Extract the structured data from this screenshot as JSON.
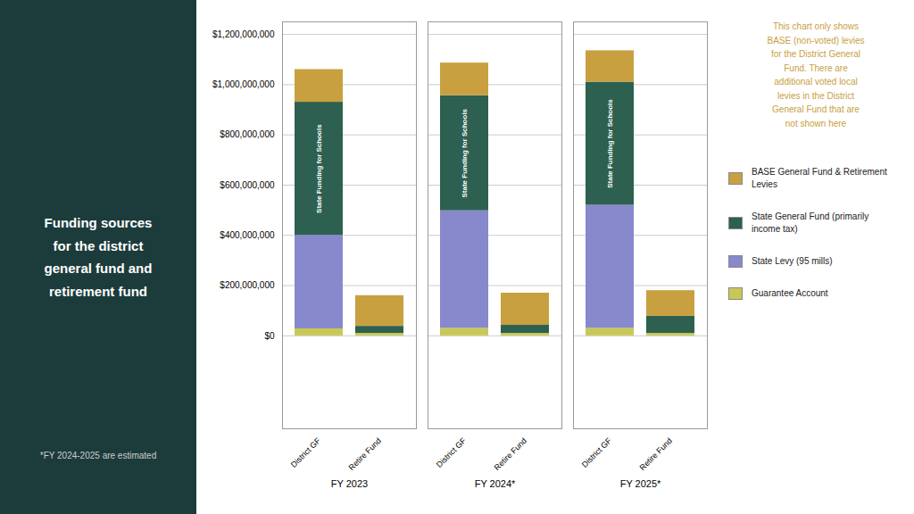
{
  "chart_data": {
    "type": "bar",
    "stacked": true,
    "title": "Funding sources\nfor the district\ngeneral fund and\nretirement fund",
    "footnote": "*FY 2024-2025 are estimated",
    "annotation": {
      "text": "This chart only shows\nBASE (non-voted) levies\nfor the District General\nFund. There are\nadditional voted local\nlevies in the District\nGeneral Fund that are\nnot shown here",
      "color": "#c8a040"
    },
    "groups": [
      "FY 2023",
      "FY 2024*",
      "FY 2025*"
    ],
    "categories": [
      "District GF",
      "Retire Fund"
    ],
    "series": [
      {
        "name": "Guarantee Account",
        "color": "#c8c855",
        "values": [
          [
            28000000,
            10000000
          ],
          [
            30000000,
            10000000
          ],
          [
            30000000,
            10000000
          ]
        ]
      },
      {
        "name": "State Levy (95 mills)",
        "color": "#8888cc",
        "values": [
          [
            372000000,
            null
          ],
          [
            468000000,
            null
          ],
          [
            490000000,
            null
          ]
        ]
      },
      {
        "name": "State General Fund (primarily\nincome tax)",
        "color": "#2d6050",
        "values": [
          [
            530000000,
            28000000
          ],
          [
            458000000,
            32000000
          ],
          [
            490000000,
            68000000
          ]
        ],
        "segment_label": {
          "text": "State Funding for Schools",
          "category": "District GF",
          "color": "#ffffff"
        }
      },
      {
        "name": "BASE General Fund & Retirement\nLevies",
        "color": "#c8a040",
        "values": [
          [
            130000000,
            122000000
          ],
          [
            130000000,
            128000000
          ],
          [
            125000000,
            102000000
          ]
        ]
      }
    ],
    "ylim": [
      -370000000,
      1250000000
    ],
    "yticks": [
      {
        "value": 0,
        "label": "$0"
      },
      {
        "value": 200000000,
        "label": "$200,000,000"
      },
      {
        "value": 400000000,
        "label": "$400,000,000"
      },
      {
        "value": 600000000,
        "label": "$600,000,000"
      },
      {
        "value": 800000000,
        "label": "$800,000,000"
      },
      {
        "value": 1000000000,
        "label": "$1,000,000,000"
      },
      {
        "value": 1200000000,
        "label": "$1,200,000,000"
      }
    ],
    "grid": true,
    "legend": "right"
  }
}
